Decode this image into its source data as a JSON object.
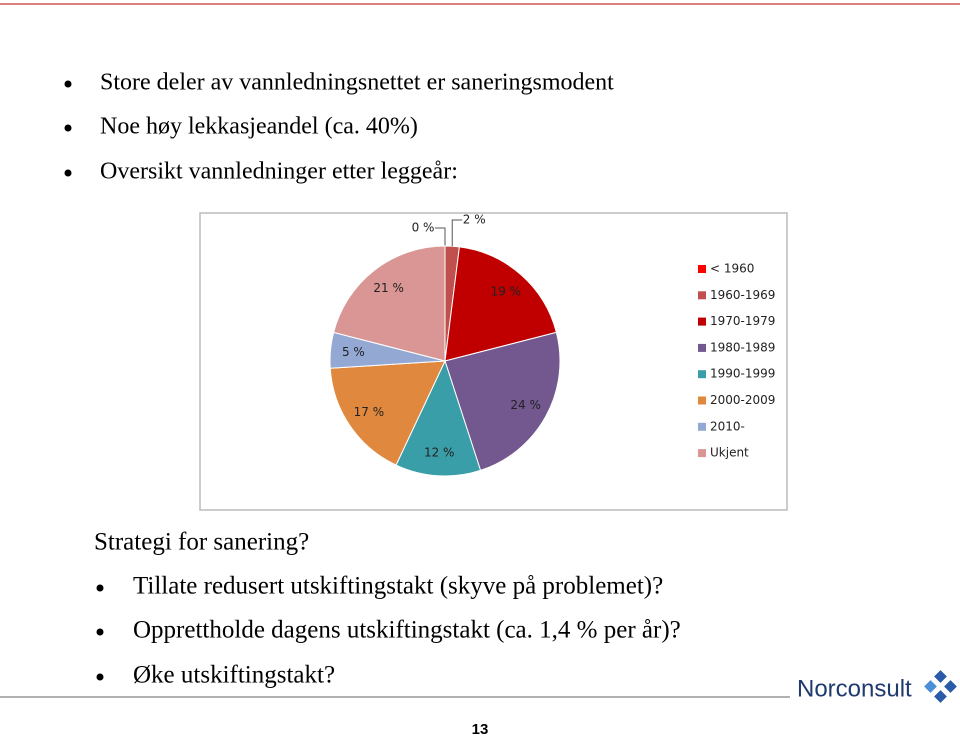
{
  "bullets": [
    "Store deler av vannledningsnettet er saneringsmodent",
    "Noe høy lekkasjeandel (ca. 40%)",
    "Oversikt vannledninger etter leggeår:"
  ],
  "chart_data": {
    "type": "pie",
    "categories": [
      "< 1960",
      "1960-1969",
      "1970-1979",
      "1980-1989",
      "1990-1999",
      "2000-2009",
      "2010-",
      "Ukjent"
    ],
    "values": [
      0,
      2,
      19,
      24,
      12,
      17,
      5,
      21
    ],
    "value_labels": [
      "0 %",
      "2 %",
      "19 %",
      "24 %",
      "12 %",
      "17 %",
      "5 %",
      "21 %"
    ],
    "colors": [
      "#ff0000",
      "#c0504d",
      "#c00000",
      "#72588f",
      "#3a9ea8",
      "#e0883e",
      "#93a9d4",
      "#d99694"
    ],
    "legend": "right"
  },
  "question": "Strategi for sanering?",
  "sub_bullets": [
    "Tillate redusert utskiftingstakt (skyve på problemet)?",
    "Opprettholde dagens utskiftingstakt (ca. 1,4 % per år)?",
    "Øke utskiftingstakt?"
  ],
  "page_number": "13",
  "logo": "Norconsult"
}
